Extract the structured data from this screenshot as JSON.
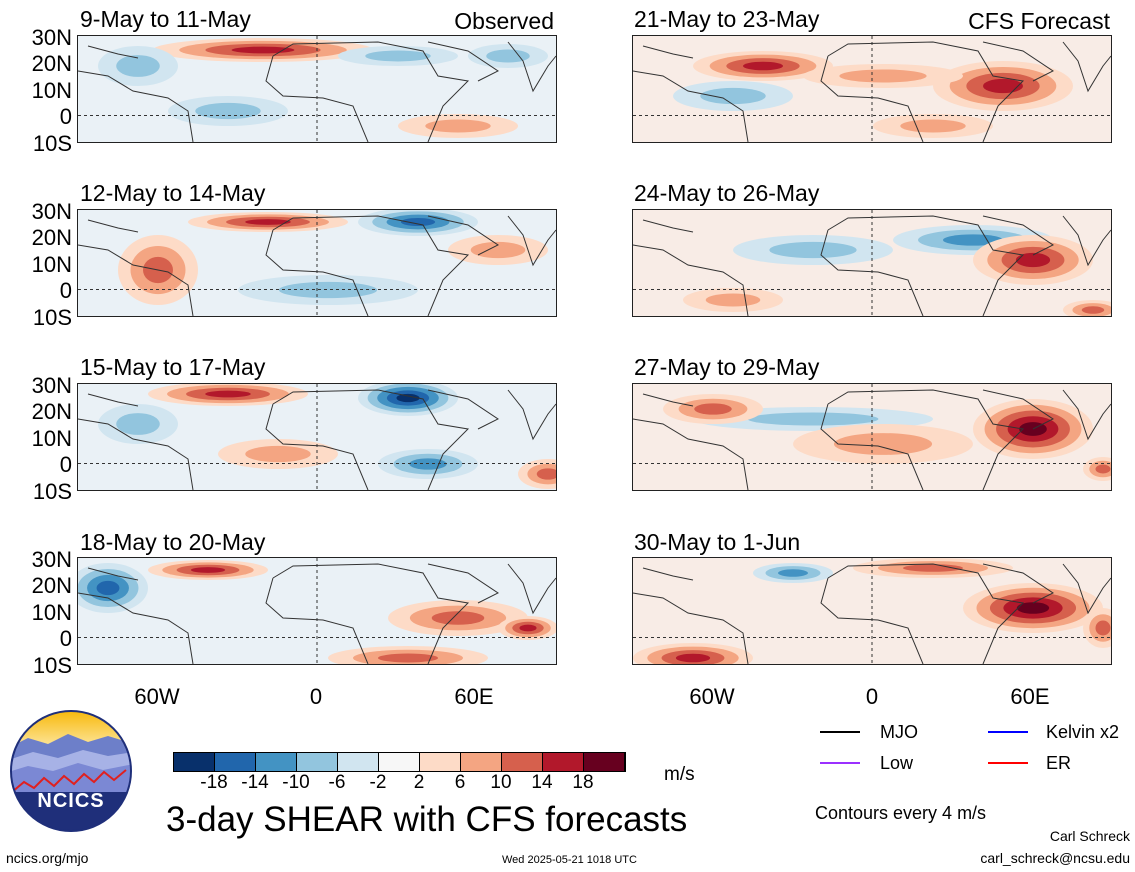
{
  "panels": [
    {
      "title": "9-May to 11-May",
      "corner": "Observed"
    },
    {
      "title": "12-May to 14-May",
      "corner": ""
    },
    {
      "title": "15-May to 17-May",
      "corner": ""
    },
    {
      "title": "18-May to 20-May",
      "corner": ""
    },
    {
      "title": "21-May to 23-May",
      "corner": "CFS Forecast"
    },
    {
      "title": "24-May to 26-May",
      "corner": ""
    },
    {
      "title": "27-May to 29-May",
      "corner": ""
    },
    {
      "title": "30-May to 1-Jun",
      "corner": ""
    }
  ],
  "lat_labels": [
    "30N",
    "20N",
    "10N",
    "0",
    "10S"
  ],
  "lon_labels": [
    "60W",
    "0",
    "60E"
  ],
  "colorbar": {
    "colors": [
      "#08306b",
      "#2166ac",
      "#4393c3",
      "#92c5de",
      "#d1e5f0",
      "#f7f7f7",
      "#fddbc7",
      "#f4a582",
      "#d6604d",
      "#b2182b",
      "#67001f"
    ],
    "labels": [
      "-18",
      "-14",
      "-10",
      "-6",
      "-2",
      "2",
      "6",
      "10",
      "14",
      "18"
    ],
    "units": "m/s"
  },
  "legend": {
    "items": [
      {
        "label": "MJO",
        "color": "#000000"
      },
      {
        "label": "Kelvin x2",
        "color": "#0000ff"
      },
      {
        "label": "Low",
        "color": "#9b30ff"
      },
      {
        "label": "ER",
        "color": "#ff0000"
      }
    ],
    "contours_note": "Contours every 4 m/s"
  },
  "main_title": "3-day SHEAR with CFS forecasts",
  "logo_text": "NCICS",
  "footer": {
    "url": "ncics.org/mjo",
    "timestamp": "Wed 2025-05-21 1018 UTC",
    "author": "Carl Schreck",
    "email": "carl_schreck@ncsu.edu"
  }
}
